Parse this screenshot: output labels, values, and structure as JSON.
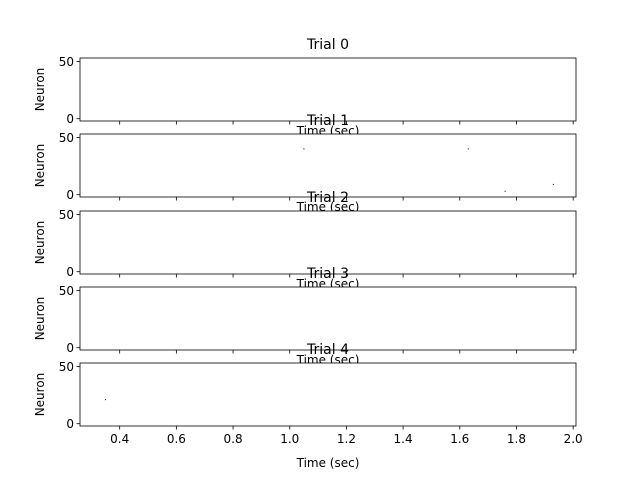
{
  "chart_data": [
    {
      "type": "scatter",
      "title": "Trial 0",
      "xlabel": "Time (sec)",
      "ylabel": "Neuron",
      "xlim": [
        0.26,
        2.01
      ],
      "ylim": [
        -2,
        53
      ],
      "yticks": [
        "50",
        "0"
      ],
      "ytick_values": [
        50,
        0
      ],
      "x": [],
      "y": []
    },
    {
      "type": "scatter",
      "title": "Trial 1",
      "xlabel": "Time (sec)",
      "ylabel": "Neuron",
      "xlim": [
        0.26,
        2.01
      ],
      "ylim": [
        -2,
        53
      ],
      "yticks": [
        "50",
        "0"
      ],
      "ytick_values": [
        50,
        0
      ],
      "x": [
        1.05,
        1.63,
        1.76,
        1.93
      ],
      "y": [
        40,
        40,
        3,
        9
      ]
    },
    {
      "type": "scatter",
      "title": "Trial 2",
      "xlabel": "Time (sec)",
      "ylabel": "Neuron",
      "xlim": [
        0.26,
        2.01
      ],
      "ylim": [
        -2,
        53
      ],
      "yticks": [
        "50",
        "0"
      ],
      "ytick_values": [
        50,
        0
      ],
      "x": [],
      "y": []
    },
    {
      "type": "scatter",
      "title": "Trial 3",
      "xlabel": "Time (sec)",
      "ylabel": "Neuron",
      "xlim": [
        0.26,
        2.01
      ],
      "ylim": [
        -2,
        53
      ],
      "yticks": [
        "50",
        "0"
      ],
      "ytick_values": [
        50,
        0
      ],
      "x": [],
      "y": []
    },
    {
      "type": "scatter",
      "title": "Trial 4",
      "xlabel": "Time (sec)",
      "ylabel": "Neuron",
      "xlim": [
        0.26,
        2.01
      ],
      "ylim": [
        -2,
        53
      ],
      "yticks": [
        "50",
        "0"
      ],
      "ytick_values": [
        50,
        0
      ],
      "xticks": [
        "0.4",
        "0.6",
        "0.8",
        "1.0",
        "1.2",
        "1.4",
        "1.6",
        "1.8",
        "2.0"
      ],
      "xtick_values": [
        0.4,
        0.6,
        0.8,
        1.0,
        1.2,
        1.4,
        1.6,
        1.8,
        2.0
      ],
      "x": [
        0.35
      ],
      "y": [
        21
      ]
    }
  ]
}
